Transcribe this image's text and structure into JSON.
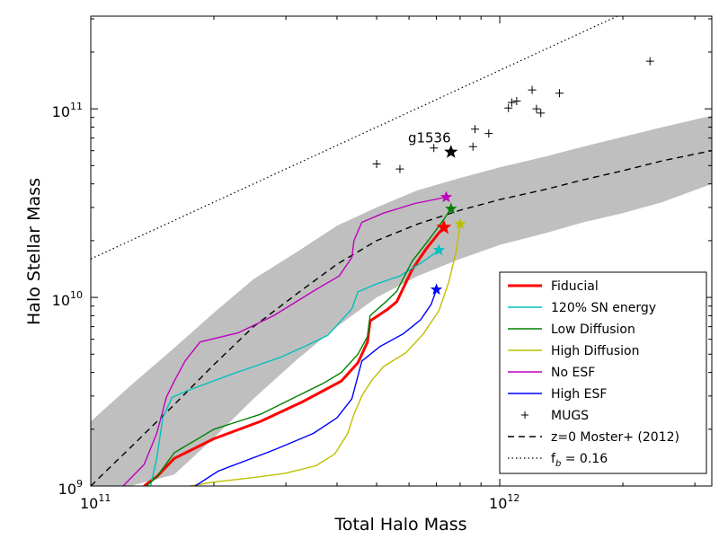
{
  "chart_data": {
    "type": "line",
    "xscale": "log",
    "yscale": "log",
    "xlim": [
      100000000000.0,
      3300000000000.0
    ],
    "ylim": [
      1000000000.0,
      310000000000.0
    ],
    "xlabel": "Total Halo Mass",
    "ylabel": "Halo Stellar Mass",
    "xticks": [
      {
        "value": 100000000000.0,
        "base": "10",
        "exp": "11"
      },
      {
        "value": 1000000000000.0,
        "base": "10",
        "exp": "12"
      }
    ],
    "yticks": [
      {
        "value": 1000000000.0,
        "base": "10",
        "exp": "9"
      },
      {
        "value": 10000000000.0,
        "base": "10",
        "exp": "10"
      },
      {
        "value": 100000000000.0,
        "base": "10",
        "exp": "11"
      }
    ],
    "legend_position": "lower-right",
    "series": [
      {
        "name": "Fiducial",
        "color": "#ff0000",
        "linewidth": 3,
        "end_color": "#ff0000",
        "points": [
          [
            135000000000.0,
            1000000000.0
          ],
          [
            145000000000.0,
            1120000000.0
          ],
          [
            160000000000.0,
            1400000000.0
          ],
          [
            200000000000.0,
            1780000000.0
          ],
          [
            260000000000.0,
            2200000000.0
          ],
          [
            330000000000.0,
            2800000000.0
          ],
          [
            370000000000.0,
            3200000000.0
          ],
          [
            410000000000.0,
            3600000000.0
          ],
          [
            450000000000.0,
            4500000000.0
          ],
          [
            475000000000.0,
            5800000000.0
          ],
          [
            482000000000.0,
            7500000000.0
          ],
          [
            530000000000.0,
            8600000000.0
          ],
          [
            560000000000.0,
            9500000000.0
          ],
          [
            610000000000.0,
            14000000000.0
          ],
          [
            660000000000.0,
            18000000000.0
          ],
          [
            710000000000.0,
            22000000000.0
          ],
          [
            730000000000.0,
            23500000000.0
          ]
        ],
        "end": [
          730000000000.0,
          23500000000.0
        ]
      },
      {
        "name": "120% SN energy",
        "color": "#00bfbf",
        "linewidth": 1.4,
        "end_color": "#00bfbf",
        "points": [
          [
            140000000000.0,
            1000000000.0
          ],
          [
            145000000000.0,
            1400000000.0
          ],
          [
            150000000000.0,
            2300000000.0
          ],
          [
            158000000000.0,
            2950000000.0
          ],
          [
            172000000000.0,
            3200000000.0
          ],
          [
            220000000000.0,
            3900000000.0
          ],
          [
            290000000000.0,
            4800000000.0
          ],
          [
            340000000000.0,
            5600000000.0
          ],
          [
            380000000000.0,
            6300000000.0
          ],
          [
            435000000000.0,
            8700000000.0
          ],
          [
            450000000000.0,
            10700000000.0
          ],
          [
            500000000000.0,
            11800000000.0
          ],
          [
            570000000000.0,
            13000000000.0
          ],
          [
            650000000000.0,
            15500000000.0
          ],
          [
            710000000000.0,
            17800000000.0
          ]
        ],
        "end": [
          710000000000.0,
          17800000000.0
        ]
      },
      {
        "name": "Low Diffusion",
        "color": "#008000",
        "linewidth": 1.4,
        "end_color": "#008000",
        "points": [
          [
            137000000000.0,
            1000000000.0
          ],
          [
            145000000000.0,
            1120000000.0
          ],
          [
            160000000000.0,
            1500000000.0
          ],
          [
            200000000000.0,
            2000000000.0
          ],
          [
            260000000000.0,
            2400000000.0
          ],
          [
            330000000000.0,
            3100000000.0
          ],
          [
            370000000000.0,
            3500000000.0
          ],
          [
            410000000000.0,
            4000000000.0
          ],
          [
            450000000000.0,
            5000000000.0
          ],
          [
            475000000000.0,
            6200000000.0
          ],
          [
            482000000000.0,
            8000000000.0
          ],
          [
            530000000000.0,
            9600000000.0
          ],
          [
            560000000000.0,
            10800000000.0
          ],
          [
            610000000000.0,
            15500000000.0
          ],
          [
            680000000000.0,
            21000000000.0
          ],
          [
            730000000000.0,
            26000000000.0
          ],
          [
            760000000000.0,
            29500000000.0
          ]
        ],
        "end": [
          760000000000.0,
          29500000000.0
        ]
      },
      {
        "name": "High Diffusion",
        "color": "#bfbf00",
        "linewidth": 1.4,
        "end_color": "#bfbf00",
        "points": [
          [
            175000000000.0,
            1000000000.0
          ],
          [
            200000000000.0,
            1050000000.0
          ],
          [
            260000000000.0,
            1120000000.0
          ],
          [
            300000000000.0,
            1170000000.0
          ],
          [
            355000000000.0,
            1280000000.0
          ],
          [
            395000000000.0,
            1480000000.0
          ],
          [
            425000000000.0,
            1900000000.0
          ],
          [
            440000000000.0,
            2400000000.0
          ],
          [
            460000000000.0,
            3000000000.0
          ],
          [
            485000000000.0,
            3600000000.0
          ],
          [
            520000000000.0,
            4300000000.0
          ],
          [
            590000000000.0,
            5100000000.0
          ],
          [
            650000000000.0,
            6400000000.0
          ],
          [
            710000000000.0,
            8500000000.0
          ],
          [
            750000000000.0,
            12000000000.0
          ],
          [
            780000000000.0,
            17000000000.0
          ],
          [
            800000000000.0,
            24500000000.0
          ]
        ],
        "end": [
          800000000000.0,
          24500000000.0
        ]
      },
      {
        "name": "No ESF",
        "color": "#bf00bf",
        "linewidth": 1.4,
        "end_color": "#bf00bf",
        "points": [
          [
            120000000000.0,
            1000000000.0
          ],
          [
            135000000000.0,
            1300000000.0
          ],
          [
            145000000000.0,
            1900000000.0
          ],
          [
            150000000000.0,
            2500000000.0
          ],
          [
            153000000000.0,
            2950000000.0
          ],
          [
            160000000000.0,
            3600000000.0
          ],
          [
            170000000000.0,
            4600000000.0
          ],
          [
            185000000000.0,
            5800000000.0
          ],
          [
            230000000000.0,
            6500000000.0
          ],
          [
            280000000000.0,
            8000000000.0
          ],
          [
            350000000000.0,
            10800000000.0
          ],
          [
            405000000000.0,
            13000000000.0
          ],
          [
            435000000000.0,
            16300000000.0
          ],
          [
            440000000000.0,
            20000000000.0
          ],
          [
            460000000000.0,
            25000000000.0
          ],
          [
            520000000000.0,
            28000000000.0
          ],
          [
            620000000000.0,
            31500000000.0
          ],
          [
            740000000000.0,
            34000000000.0
          ]
        ],
        "end": [
          740000000000.0,
          34000000000.0
        ]
      },
      {
        "name": "High ESF",
        "color": "#0000ff",
        "linewidth": 1.4,
        "end_color": "#0000ff",
        "points": [
          [
            180000000000.0,
            1000000000.0
          ],
          [
            205000000000.0,
            1200000000.0
          ],
          [
            280000000000.0,
            1550000000.0
          ],
          [
            350000000000.0,
            1900000000.0
          ],
          [
            400000000000.0,
            2300000000.0
          ],
          [
            435000000000.0,
            2900000000.0
          ],
          [
            448000000000.0,
            3700000000.0
          ],
          [
            460000000000.0,
            4600000000.0
          ],
          [
            510000000000.0,
            5500000000.0
          ],
          [
            580000000000.0,
            6400000000.0
          ],
          [
            640000000000.0,
            7600000000.0
          ],
          [
            680000000000.0,
            9200000000.0
          ],
          [
            700000000000.0,
            11000000000.0
          ]
        ],
        "end": [
          700000000000.0,
          11000000000.0
        ]
      }
    ],
    "moster": {
      "name": "z=0 Moster+ (2012)",
      "style": "dashed",
      "points": [
        [
          100000000000.0,
          1000000000.0
        ],
        [
          125000000000.0,
          1600000000.0
        ],
        [
          160000000000.0,
          2700000000.0
        ],
        [
          200000000000.0,
          4400000000.0
        ],
        [
          250000000000.0,
          7000000000.0
        ],
        [
          320000000000.0,
          10500000000.0
        ],
        [
          400000000000.0,
          15000000000.0
        ],
        [
          500000000000.0,
          20000000000.0
        ],
        [
          630000000000.0,
          24500000000.0
        ],
        [
          800000000000.0,
          29000000000.0
        ],
        [
          1000000000000.0,
          33000000000.0
        ],
        [
          1300000000000.0,
          37500000000.0
        ],
        [
          1600000000000.0,
          42000000000.0
        ],
        [
          2000000000000.0,
          47000000000.0
        ],
        [
          2500000000000.0,
          53000000000.0
        ],
        [
          3300000000000.0,
          60000000000.0
        ]
      ],
      "band_upper": [
        [
          100000000000.0,
          2200000000.0
        ],
        [
          125000000000.0,
          3400000000.0
        ],
        [
          160000000000.0,
          5400000000.0
        ],
        [
          200000000000.0,
          8300000000.0
        ],
        [
          250000000000.0,
          12500000000.0
        ],
        [
          320000000000.0,
          17500000000.0
        ],
        [
          400000000000.0,
          24000000000.0
        ],
        [
          500000000000.0,
          30000000000.0
        ],
        [
          630000000000.0,
          37000000000.0
        ],
        [
          800000000000.0,
          43000000000.0
        ],
        [
          1000000000000.0,
          49000000000.0
        ],
        [
          1300000000000.0,
          56000000000.0
        ],
        [
          1600000000000.0,
          63000000000.0
        ],
        [
          2000000000000.0,
          71000000000.0
        ],
        [
          2500000000000.0,
          80000000000.0
        ],
        [
          3300000000000.0,
          92000000000.0
        ]
      ],
      "band_lower": [
        [
          100000000000.0,
          1000000000.0
        ],
        [
          125000000000.0,
          1000000000.0
        ],
        [
          160000000000.0,
          1150000000.0
        ],
        [
          200000000000.0,
          1800000000.0
        ],
        [
          250000000000.0,
          2900000000.0
        ],
        [
          320000000000.0,
          4700000000.0
        ],
        [
          400000000000.0,
          7000000000.0
        ],
        [
          500000000000.0,
          10000000000.0
        ],
        [
          630000000000.0,
          13000000000.0
        ],
        [
          800000000000.0,
          16000000000.0
        ],
        [
          1000000000000.0,
          19000000000.0
        ],
        [
          1300000000000.0,
          22000000000.0
        ],
        [
          1600000000000.0,
          25000000000.0
        ],
        [
          2000000000000.0,
          28000000000.0
        ],
        [
          2500000000000.0,
          32000000000.0
        ],
        [
          3300000000000.0,
          40000000000.0
        ]
      ]
    },
    "baryon_fraction": {
      "name": "f_b = 0.16",
      "fraction": 0.16,
      "style": "dotted"
    },
    "mugs": {
      "name": "MUGS",
      "points": [
        [
          500000000000.0,
          51000000000.0
        ],
        [
          570000000000.0,
          48000000000.0
        ],
        [
          690000000000.0,
          62000000000.0
        ],
        [
          860000000000.0,
          63000000000.0
        ],
        [
          870000000000.0,
          78000000000.0
        ],
        [
          940000000000.0,
          74000000000.0
        ],
        [
          1050000000000.0,
          101000000000.0
        ],
        [
          1070000000000.0,
          108000000000.0
        ],
        [
          1100000000000.0,
          110000000000.0
        ],
        [
          1200000000000.0,
          126000000000.0
        ],
        [
          1230000000000.0,
          100000000000.0
        ],
        [
          1260000000000.0,
          95000000000.0
        ],
        [
          1400000000000.0,
          121000000000.0
        ],
        [
          2330000000000.0,
          179000000000.0
        ]
      ]
    },
    "highlight": {
      "label": "g1536",
      "x": 760000000000.0,
      "y": 59000000000.0,
      "color": "#000000"
    },
    "band_color": "#bfbfbf",
    "legend_items": [
      {
        "label": "Fiducial",
        "style": "solid",
        "color": "#ff0000",
        "width": 3
      },
      {
        "label": "120% SN energy",
        "style": "solid",
        "color": "#00bfbf",
        "width": 1.4
      },
      {
        "label": "Low Diffusion",
        "style": "solid",
        "color": "#008000",
        "width": 1.4
      },
      {
        "label": "High Diffusion",
        "style": "solid",
        "color": "#bfbf00",
        "width": 1.4
      },
      {
        "label": "No ESF",
        "style": "solid",
        "color": "#bf00bf",
        "width": 1.4
      },
      {
        "label": "High ESF",
        "style": "solid",
        "color": "#0000ff",
        "width": 1.4
      },
      {
        "label": "MUGS",
        "style": "plus",
        "color": "#000000",
        "width": 1
      },
      {
        "label": "z=0 Moster+ (2012)",
        "style": "dashed",
        "color": "#000000",
        "width": 1.4
      },
      {
        "label": "f",
        "sub": "b",
        "suffix": " = 0.16",
        "style": "dotted",
        "color": "#000000",
        "width": 1.2
      }
    ]
  }
}
